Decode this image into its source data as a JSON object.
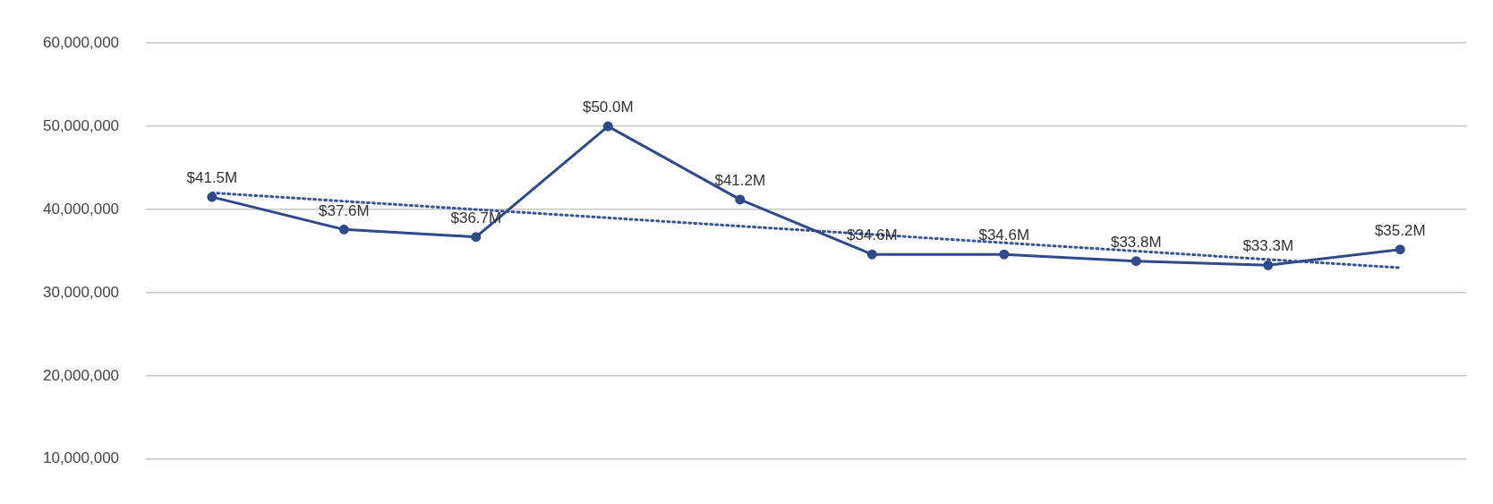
{
  "chart_data": {
    "type": "line",
    "categories": [
      null,
      null,
      null,
      null,
      null,
      null,
      null,
      null,
      null,
      null
    ],
    "series": [
      {
        "color": "#2f4a8a",
        "values": [
          41500000,
          37600000,
          36700000,
          50000000,
          41200000,
          34600000,
          34600000,
          33800000,
          33300000,
          35200000
        ],
        "value_labels": [
          "$41.5M",
          "$37.6M",
          "$36.7M",
          "$50.0M",
          "$41.2M",
          "$34.6M",
          "$34.6M",
          "$33.8M",
          "$33.3M",
          "$35.2M"
        ],
        "marker": "circle",
        "line_style": "solid"
      },
      {
        "type": "line",
        "color": "#3a5596",
        "values": [
          42000000,
          null,
          null,
          null,
          null,
          null,
          null,
          null,
          null,
          33000000
        ],
        "marker": "none",
        "line_style": "dotted"
      }
    ],
    "ylim": [
      10000000,
      60000000
    ],
    "yticks": [
      {
        "value": 10000000,
        "label": "10,000,000"
      },
      {
        "value": 20000000,
        "label": "20,000,000"
      },
      {
        "value": 30000000,
        "label": "30,000,000"
      },
      {
        "value": 40000000,
        "label": "40,000,000"
      },
      {
        "value": 50000000,
        "label": "50,000,000"
      },
      {
        "value": 60000000,
        "label": "60,000,000"
      }
    ],
    "grid": "y",
    "legend": false,
    "tick_labels": "y"
  }
}
